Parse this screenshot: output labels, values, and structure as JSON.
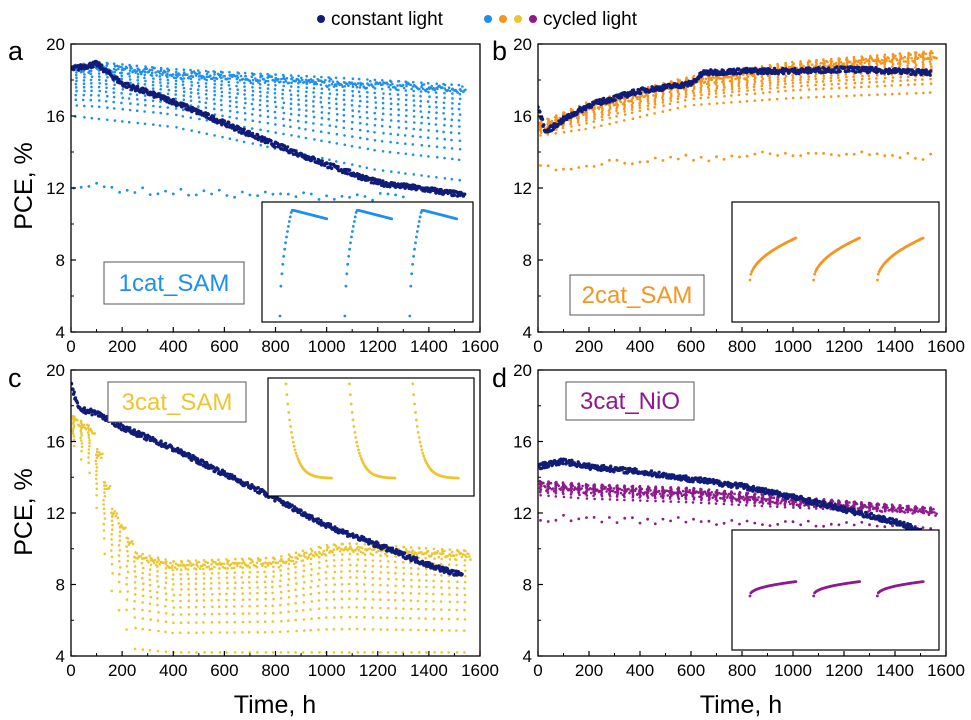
{
  "legend": {
    "constant_label": "constant light",
    "cycled_label": "cycled light",
    "constant_color": "#101c78",
    "cycled_colors": [
      "#1e8fef",
      "#f7941d",
      "#edc531",
      "#8e1a8e"
    ]
  },
  "axes": {
    "ylabel": "PCE, %",
    "xlabel": "Time, h"
  },
  "chart_data": [
    {
      "panel": "a",
      "type": "scatter",
      "sample_label": "1cat_SAM",
      "color": "#1e8fef",
      "xlim": [
        0,
        1600
      ],
      "ylim": [
        4,
        20
      ],
      "xticks": [
        0,
        200,
        400,
        600,
        800,
        1000,
        1200,
        1400,
        1600
      ],
      "yticks": [
        4,
        8,
        12,
        16,
        20
      ],
      "series": [
        {
          "name": "constant light",
          "x": [
            0,
            100,
            200,
            400,
            600,
            800,
            1000,
            1200,
            1400,
            1540
          ],
          "y": [
            18.6,
            18.9,
            17.8,
            16.8,
            15.6,
            14.4,
            13.3,
            12.3,
            11.9,
            11.6
          ]
        },
        {
          "name": "cycled light",
          "cycle_period_h": 30,
          "cycle_start_h": 20,
          "cycle_end_h": 1540,
          "upper_x": [
            0,
            100,
            400,
            800,
            1200,
            1540
          ],
          "upper_y": [
            18.8,
            19.0,
            18.6,
            18.3,
            18.0,
            17.7
          ],
          "lower_x": [
            0,
            400,
            800,
            1200,
            1540
          ],
          "lower_y": [
            16.0,
            15.4,
            14.2,
            13.0,
            12.4
          ],
          "low_x": [
            0,
            300,
            800,
            1300
          ],
          "low_y": [
            12.2,
            11.8,
            11.6,
            11.5
          ]
        }
      ]
    },
    {
      "panel": "b",
      "type": "scatter",
      "sample_label": "2cat_SAM",
      "color": "#f7941d",
      "xlim": [
        0,
        1600
      ],
      "ylim": [
        4,
        20
      ],
      "xticks": [
        0,
        200,
        400,
        600,
        800,
        1000,
        1200,
        1400,
        1600
      ],
      "yticks": [
        4,
        8,
        12,
        16,
        20
      ],
      "series": [
        {
          "name": "constant light",
          "x": [
            0,
            30,
            100,
            200,
            400,
            600,
            650,
            800,
            1000,
            1200,
            1400,
            1540
          ],
          "y": [
            16.5,
            15.1,
            15.8,
            16.6,
            17.4,
            17.8,
            18.4,
            18.5,
            18.5,
            18.6,
            18.5,
            18.4
          ]
        },
        {
          "name": "cycled light",
          "cycle_period_h": 30,
          "cycle_start_h": 10,
          "cycle_end_h": 1540,
          "upper_x": [
            0,
            200,
            600,
            1000,
            1540
          ],
          "upper_y": [
            15.6,
            16.8,
            18.2,
            19.0,
            19.6
          ],
          "lower_x": [
            0,
            200,
            600,
            1000,
            1540
          ],
          "lower_y": [
            14.9,
            15.3,
            16.6,
            17.0,
            17.3
          ],
          "low_x": [
            0,
            400,
            800,
            1200,
            1540
          ],
          "low_y": [
            13.1,
            13.5,
            13.8,
            13.9,
            13.7
          ]
        }
      ]
    },
    {
      "panel": "c",
      "type": "scatter",
      "sample_label": "3cat_SAM",
      "color": "#edc531",
      "xlim": [
        0,
        1600
      ],
      "ylim": [
        4,
        20
      ],
      "xticks": [
        0,
        200,
        400,
        600,
        800,
        1000,
        1200,
        1400,
        1600
      ],
      "yticks": [
        4,
        8,
        12,
        16,
        20
      ],
      "series": [
        {
          "name": "constant light",
          "x": [
            0,
            30,
            100,
            200,
            400,
            600,
            800,
            1000,
            1200,
            1400,
            1530
          ],
          "y": [
            19.2,
            17.8,
            17.6,
            16.8,
            15.6,
            14.2,
            12.8,
            11.3,
            10.2,
            9.1,
            8.5
          ]
        },
        {
          "name": "cycled light",
          "cycle_period_h": 30,
          "cycle_start_h": 10,
          "cycle_end_h": 1540,
          "upper_x": [
            0,
            80,
            150,
            250,
            400,
            800,
            1000,
            1100,
            1300,
            1540
          ],
          "upper_y": [
            17.5,
            16.8,
            12.5,
            9.8,
            9.3,
            9.5,
            10.2,
            10.3,
            10.1,
            9.9
          ],
          "lower_x": [
            0,
            80,
            150,
            250,
            400,
            1540
          ],
          "lower_y": [
            16.0,
            14.0,
            8.0,
            4.4,
            4.2,
            4.2
          ],
          "low_x": [],
          "low_y": []
        }
      ]
    },
    {
      "panel": "d",
      "type": "scatter",
      "sample_label": "3cat_NiO",
      "color": "#8e1a8e",
      "xlim": [
        0,
        1600
      ],
      "ylim": [
        4,
        20
      ],
      "xticks": [
        0,
        200,
        400,
        600,
        800,
        1000,
        1200,
        1400,
        1600
      ],
      "yticks": [
        4,
        8,
        12,
        16,
        20
      ],
      "series": [
        {
          "name": "constant light",
          "x": [
            0,
            100,
            200,
            400,
            600,
            800,
            1000,
            1200,
            1400,
            1500
          ],
          "y": [
            14.6,
            14.9,
            14.6,
            14.3,
            13.9,
            13.5,
            12.9,
            12.2,
            11.5,
            11.0
          ]
        },
        {
          "name": "cycled light",
          "cycle_period_h": 30,
          "cycle_start_h": 10,
          "cycle_end_h": 1540,
          "upper_x": [
            0,
            200,
            600,
            1000,
            1540
          ],
          "upper_y": [
            13.8,
            13.6,
            13.4,
            12.9,
            12.3
          ],
          "lower_x": [
            0,
            200,
            600,
            1000,
            1540
          ],
          "lower_y": [
            13.0,
            12.8,
            12.6,
            12.3,
            12.0
          ],
          "low_x": [
            0,
            400,
            800,
            1200
          ],
          "low_y": [
            11.7,
            11.6,
            11.5,
            11.3
          ]
        }
      ]
    }
  ]
}
